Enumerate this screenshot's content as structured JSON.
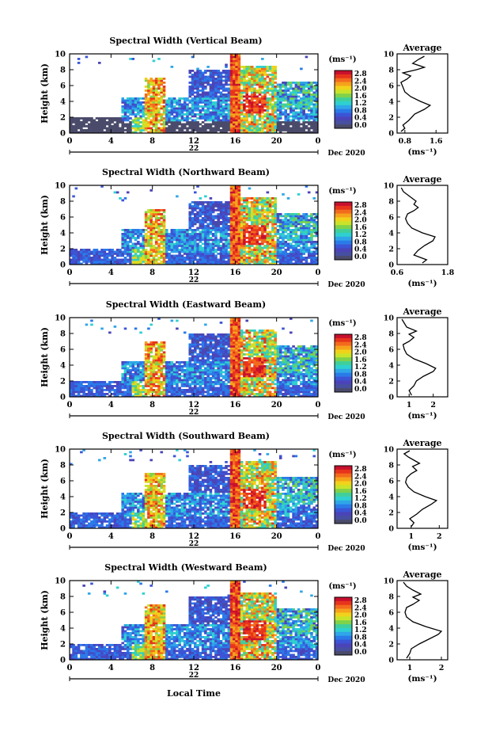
{
  "figure": {
    "xlabel": "Local Time",
    "day_label": "22",
    "month_label": "Dec 2020",
    "unit_label": "(ms⁻¹)",
    "avg_title": "Average",
    "avg_xlabel": "(ms⁻¹)"
  },
  "colorbar": {
    "ticks": [
      "2.8",
      "2.4",
      "2.0",
      "1.6",
      "1.2",
      "0.8",
      "0.4",
      "0.0"
    ],
    "colors": [
      "#c8102e",
      "#e8341c",
      "#f36b1c",
      "#f6a21c",
      "#f1d21b",
      "#c9e32a",
      "#7fd24a",
      "#3fcf9a",
      "#2fd0d0",
      "#2fa6e8",
      "#2a7ae8",
      "#3b55d6",
      "#4b44b8",
      "#474fa0",
      "#4a4a6a"
    ]
  },
  "chart_data": [
    {
      "type": "heatmap",
      "title": "Spectral Width (Vertical Beam)",
      "ylabel": "Height (km)",
      "xticks": [
        "0",
        "4",
        "8",
        "12",
        "16",
        "20",
        "0"
      ],
      "yticks": [
        "10",
        "8",
        "6",
        "4",
        "2",
        "0"
      ],
      "xlim": [
        0,
        24
      ],
      "ylim": [
        0,
        10
      ],
      "avg": {
        "xticks": [
          "0.8",
          "1.6"
        ],
        "xlim": [
          0.6,
          1.9
        ],
        "profile": [
          [
            0.7,
            0.2
          ],
          [
            0.8,
            0.6
          ],
          [
            0.75,
            1.0
          ],
          [
            0.9,
            1.6
          ],
          [
            1.05,
            2.4
          ],
          [
            1.3,
            3.0
          ],
          [
            1.45,
            3.5
          ],
          [
            1.2,
            4.0
          ],
          [
            0.95,
            4.6
          ],
          [
            0.8,
            5.2
          ],
          [
            0.75,
            5.8
          ],
          [
            0.7,
            6.4
          ],
          [
            0.85,
            6.8
          ],
          [
            0.95,
            7.2
          ],
          [
            0.75,
            7.6
          ],
          [
            1.1,
            8.0
          ],
          [
            1.3,
            8.3
          ],
          [
            1.0,
            8.8
          ],
          [
            1.15,
            9.3
          ],
          [
            1.3,
            9.7
          ]
        ]
      }
    },
    {
      "type": "heatmap",
      "title": "Spectral Width (Northward Beam)",
      "ylabel": "Height (km)",
      "xticks": [
        "0",
        "4",
        "8",
        "12",
        "16",
        "20",
        "0"
      ],
      "yticks": [
        "10",
        "8",
        "6",
        "4",
        "2",
        "0"
      ],
      "xlim": [
        0,
        24
      ],
      "ylim": [
        0,
        10
      ],
      "avg": {
        "xticks": [
          "0.6",
          "1.8"
        ],
        "xlim": [
          0.6,
          1.8
        ],
        "profile": [
          [
            1.2,
            0.2
          ],
          [
            1.3,
            0.6
          ],
          [
            1.0,
            1.2
          ],
          [
            1.1,
            1.8
          ],
          [
            1.25,
            2.4
          ],
          [
            1.45,
            3.0
          ],
          [
            1.5,
            3.5
          ],
          [
            1.2,
            4.0
          ],
          [
            0.95,
            4.6
          ],
          [
            0.85,
            5.2
          ],
          [
            0.8,
            5.8
          ],
          [
            0.85,
            6.4
          ],
          [
            1.0,
            6.8
          ],
          [
            1.1,
            7.2
          ],
          [
            1.0,
            7.6
          ],
          [
            1.05,
            8.0
          ],
          [
            0.9,
            8.6
          ],
          [
            0.75,
            9.2
          ],
          [
            0.7,
            9.7
          ]
        ]
      }
    },
    {
      "type": "heatmap",
      "title": "Spectral Width (Eastward Beam)",
      "ylabel": "Height (km)",
      "xticks": [
        "0",
        "4",
        "8",
        "12",
        "16",
        "20",
        "0"
      ],
      "yticks": [
        "10",
        "8",
        "6",
        "4",
        "2",
        "0"
      ],
      "xlim": [
        0,
        24
      ],
      "ylim": [
        0,
        10
      ],
      "avg": {
        "xticks": [
          "1",
          "2"
        ],
        "xlim": [
          0.5,
          2.6
        ],
        "profile": [
          [
            1.1,
            0.2
          ],
          [
            1.0,
            0.8
          ],
          [
            1.2,
            1.4
          ],
          [
            1.3,
            2.0
          ],
          [
            1.6,
            2.6
          ],
          [
            2.0,
            3.2
          ],
          [
            2.1,
            3.6
          ],
          [
            1.7,
            4.2
          ],
          [
            1.2,
            4.8
          ],
          [
            0.9,
            5.4
          ],
          [
            0.8,
            6.0
          ],
          [
            0.75,
            6.6
          ],
          [
            1.0,
            7.0
          ],
          [
            1.2,
            7.5
          ],
          [
            1.0,
            7.9
          ],
          [
            1.3,
            8.3
          ],
          [
            0.9,
            8.8
          ],
          [
            0.8,
            9.3
          ],
          [
            0.7,
            9.8
          ]
        ]
      }
    },
    {
      "type": "heatmap",
      "title": "Spectral Width (Southward Beam)",
      "ylabel": "Height (km)",
      "xticks": [
        "0",
        "4",
        "8",
        "12",
        "16",
        "20",
        "0"
      ],
      "yticks": [
        "10",
        "8",
        "6",
        "4",
        "2",
        "0"
      ],
      "xlim": [
        0,
        24
      ],
      "ylim": [
        0,
        10
      ],
      "avg": {
        "xticks": [
          "1",
          "2"
        ],
        "xlim": [
          0.5,
          2.3
        ],
        "profile": [
          [
            1.0,
            0.2
          ],
          [
            1.1,
            0.7
          ],
          [
            0.95,
            1.2
          ],
          [
            1.2,
            1.8
          ],
          [
            1.4,
            2.4
          ],
          [
            1.7,
            3.0
          ],
          [
            1.9,
            3.5
          ],
          [
            1.5,
            4.0
          ],
          [
            1.1,
            4.6
          ],
          [
            0.9,
            5.2
          ],
          [
            0.8,
            5.8
          ],
          [
            0.85,
            6.4
          ],
          [
            1.0,
            6.9
          ],
          [
            1.2,
            7.3
          ],
          [
            1.05,
            7.8
          ],
          [
            1.3,
            8.2
          ],
          [
            1.1,
            8.6
          ],
          [
            0.9,
            9.0
          ],
          [
            0.75,
            9.4
          ],
          [
            0.95,
            9.8
          ]
        ]
      }
    },
    {
      "type": "heatmap",
      "title": "Spectral Width (Westward Beam)",
      "ylabel": "Height (km)",
      "xticks": [
        "0",
        "4",
        "8",
        "12",
        "16",
        "20",
        "0"
      ],
      "yticks": [
        "10",
        "8",
        "6",
        "4",
        "2",
        "0"
      ],
      "xlim": [
        0,
        24
      ],
      "ylim": [
        0,
        10
      ],
      "avg": {
        "xticks": [
          "1",
          "2"
        ],
        "xlim": [
          0.6,
          2.2
        ],
        "profile": [
          [
            0.9,
            0.2
          ],
          [
            1.0,
            0.8
          ],
          [
            1.05,
            1.4
          ],
          [
            1.3,
            2.0
          ],
          [
            1.6,
            2.6
          ],
          [
            1.9,
            3.2
          ],
          [
            2.0,
            3.6
          ],
          [
            1.5,
            4.2
          ],
          [
            1.1,
            4.8
          ],
          [
            0.9,
            5.4
          ],
          [
            0.85,
            6.0
          ],
          [
            0.9,
            6.6
          ],
          [
            1.1,
            7.0
          ],
          [
            1.3,
            7.5
          ],
          [
            1.1,
            7.9
          ],
          [
            1.35,
            8.3
          ],
          [
            1.1,
            8.8
          ],
          [
            0.9,
            9.3
          ],
          [
            0.8,
            9.8
          ]
        ]
      }
    }
  ]
}
